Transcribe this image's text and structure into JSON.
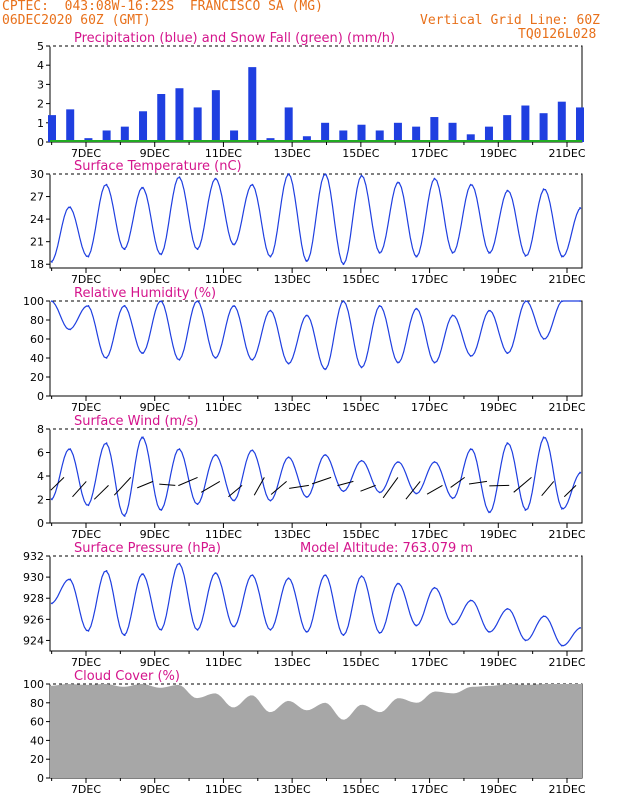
{
  "header": {
    "line1": "CPTEC:  043:08W-16:22S  FRANCISCO SA (MG)",
    "line2": "06DEC2020 60Z (GMT)",
    "grid_note": "Vertical Grid Line: 60Z",
    "code": "TQ0126L028",
    "accent": "#e8701a",
    "title_color": "#d4148c",
    "series_color": "#1f3fe0",
    "cloud_color": "#a7a7a7"
  },
  "date_ticks": [
    "7DEC",
    "9DEC",
    "11DEC",
    "13DEC",
    "15DEC",
    "17DEC",
    "19DEC",
    "21DEC"
  ],
  "panel_titles": {
    "precip": "Precipitation (blue) and Snow Fall (green) (mm/h)",
    "temp": "Surface Temperature (nC)",
    "rh": "Relative Humidity (%)",
    "wind": "Surface Wind (m/s)",
    "pres": "Surface Pressure (hPa)",
    "altitude": "Model Altitude: 763.079 m",
    "cloud": "Cloud Cover (%)"
  },
  "chart_data": [
    {
      "type": "bar",
      "title": "Precipitation (blue) and Snow Fall (green) (mm/h)",
      "ylim": [
        0,
        5
      ],
      "yticks": [
        0,
        1,
        2,
        3,
        4,
        5
      ],
      "x": [
        "6DEC 12Z",
        "7DEC 00Z",
        "7DEC 12Z",
        "8DEC 00Z",
        "8DEC 12Z",
        "9DEC 00Z",
        "9DEC 12Z",
        "10DEC 00Z",
        "10DEC 12Z",
        "11DEC 00Z",
        "11DEC 12Z",
        "12DEC 00Z",
        "12DEC 12Z",
        "13DEC 00Z",
        "13DEC 12Z",
        "14DEC 00Z",
        "14DEC 12Z",
        "15DEC 00Z",
        "15DEC 12Z",
        "16DEC 00Z",
        "16DEC 12Z",
        "17DEC 00Z",
        "17DEC 12Z",
        "18DEC 00Z",
        "18DEC 12Z",
        "19DEC 00Z",
        "19DEC 12Z",
        "20DEC 00Z",
        "20DEC 12Z",
        "21DEC 00Z"
      ],
      "series": [
        {
          "name": "Precipitation",
          "values": [
            1.4,
            1.7,
            0.2,
            0.6,
            0.8,
            1.6,
            2.5,
            2.8,
            1.8,
            2.7,
            0.6,
            3.9,
            0.2,
            1.8,
            0.3,
            1.0,
            0.6,
            0.9,
            0.6,
            1.0,
            0.8,
            1.3,
            1.0,
            0.4,
            0.8,
            1.4,
            1.9,
            1.5,
            2.1,
            1.8
          ]
        },
        {
          "name": "Snow Fall",
          "values": [
            0,
            0,
            0,
            0,
            0,
            0,
            0,
            0,
            0,
            0,
            0,
            0,
            0,
            0,
            0,
            0,
            0,
            0,
            0,
            0,
            0,
            0,
            0,
            0,
            0,
            0,
            0,
            0,
            0,
            0
          ]
        }
      ]
    },
    {
      "type": "line",
      "title": "Surface Temperature (nC)",
      "ylim": [
        17.5,
        30
      ],
      "yticks": [
        18,
        21,
        24,
        27,
        30
      ],
      "series": [
        {
          "name": "Temperature",
          "values": [
            18.3,
            25.6,
            19.0,
            28.6,
            20.0,
            28.2,
            19.3,
            29.6,
            20.0,
            29.4,
            20.6,
            28.6,
            19.0,
            30.0,
            18.4,
            30.0,
            18.0,
            29.8,
            19.5,
            28.9,
            19.0,
            29.4,
            19.5,
            28.6,
            19.5,
            27.8,
            19.1,
            28.0,
            19.0,
            25.5
          ]
        }
      ]
    },
    {
      "type": "line",
      "title": "Relative Humidity (%)",
      "ylim": [
        0,
        100
      ],
      "yticks": [
        0,
        20,
        40,
        60,
        80,
        100
      ],
      "series": [
        {
          "name": "Relative Humidity",
          "values": [
            100,
            70,
            95,
            40,
            95,
            45,
            100,
            38,
            100,
            40,
            95,
            38,
            90,
            34,
            85,
            28,
            100,
            30,
            95,
            35,
            92,
            35,
            85,
            42,
            90,
            45,
            100,
            60,
            100,
            100
          ]
        }
      ]
    },
    {
      "type": "line",
      "title": "Surface Wind (m/s)",
      "ylim": [
        0,
        8
      ],
      "yticks": [
        0,
        2,
        4,
        6,
        8
      ],
      "series": [
        {
          "name": "Wind Speed",
          "values": [
            2.0,
            6.3,
            1.5,
            6.8,
            0.6,
            7.3,
            1.1,
            6.3,
            1.6,
            5.8,
            1.9,
            6.2,
            1.9,
            5.6,
            2.2,
            5.8,
            2.7,
            5.3,
            2.6,
            5.2,
            2.5,
            5.2,
            2.1,
            6.3,
            0.9,
            6.8,
            1.1,
            7.3,
            1.2,
            4.3
          ]
        }
      ]
    },
    {
      "type": "line",
      "title": "Surface Pressure (hPa)",
      "ylim": [
        923,
        932
      ],
      "yticks": [
        924,
        926,
        928,
        930,
        932
      ],
      "series": [
        {
          "name": "Pressure",
          "values": [
            927.5,
            929.8,
            924.9,
            930.6,
            924.5,
            930.3,
            925.0,
            931.3,
            925.0,
            930.4,
            925.3,
            930.2,
            925.0,
            929.9,
            924.8,
            930.2,
            924.5,
            930.1,
            924.7,
            929.4,
            925.4,
            929.0,
            925.5,
            927.8,
            924.8,
            927.0,
            924.0,
            926.3,
            923.5,
            925.2
          ]
        }
      ]
    },
    {
      "type": "area",
      "title": "Cloud Cover (%)",
      "ylim": [
        0,
        100
      ],
      "yticks": [
        0,
        20,
        40,
        60,
        80,
        100
      ],
      "series": [
        {
          "name": "Cloud Cover",
          "values": [
            98,
            100,
            99,
            100,
            97,
            100,
            96,
            99,
            85,
            90,
            75,
            88,
            70,
            82,
            72,
            80,
            62,
            78,
            70,
            85,
            80,
            92,
            90,
            97,
            98,
            100,
            99,
            100,
            100,
            100
          ]
        }
      ]
    }
  ]
}
